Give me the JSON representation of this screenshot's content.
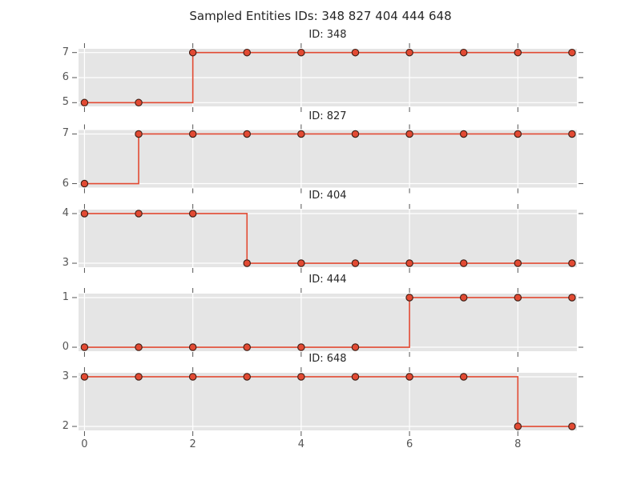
{
  "figure": {
    "title": "Sampled Entities IDs: 348 827 404 444 648",
    "colors": {
      "background": "#ffffff",
      "axes_background": "#e5e5e5",
      "grid": "#ffffff",
      "line": "#e24a33",
      "marker_fill": "#e24a33",
      "marker_edge": "#3d1e15",
      "title_text": "#262626",
      "tick_text": "#555555",
      "tick_mark": "#555555"
    }
  },
  "chart_data": [
    {
      "type": "line",
      "drawstyle": "steps-post",
      "title": "ID: 348",
      "x": [
        0,
        1,
        2,
        3,
        4,
        5,
        6,
        7,
        8,
        9
      ],
      "y": [
        5,
        5,
        7,
        7,
        7,
        7,
        7,
        7,
        7,
        7
      ],
      "yticks": [
        5,
        6,
        7
      ],
      "ylim": [
        4.85,
        7.15
      ],
      "xticks": [
        0,
        2,
        4,
        6,
        8
      ],
      "xlim": [
        -0.11,
        9.09
      ],
      "show_xticklabels": false,
      "grid": true,
      "legend": false
    },
    {
      "type": "line",
      "drawstyle": "steps-post",
      "title": "ID: 827",
      "x": [
        0,
        1,
        2,
        3,
        4,
        5,
        6,
        7,
        8,
        9
      ],
      "y": [
        6,
        7,
        7,
        7,
        7,
        7,
        7,
        7,
        7,
        7
      ],
      "yticks": [
        6,
        7
      ],
      "ylim": [
        5.92,
        7.08
      ],
      "xticks": [
        0,
        2,
        4,
        6,
        8
      ],
      "xlim": [
        -0.11,
        9.09
      ],
      "show_xticklabels": false,
      "grid": true,
      "legend": false
    },
    {
      "type": "line",
      "drawstyle": "steps-post",
      "title": "ID: 404",
      "x": [
        0,
        1,
        2,
        3,
        4,
        5,
        6,
        7,
        8,
        9
      ],
      "y": [
        4,
        4,
        4,
        3,
        3,
        3,
        3,
        3,
        3,
        3
      ],
      "yticks": [
        3,
        4
      ],
      "ylim": [
        2.92,
        4.08
      ],
      "xticks": [
        0,
        2,
        4,
        6,
        8
      ],
      "xlim": [
        -0.11,
        9.09
      ],
      "show_xticklabels": false,
      "grid": true,
      "legend": false
    },
    {
      "type": "line",
      "drawstyle": "steps-post",
      "title": "ID: 444",
      "x": [
        0,
        1,
        2,
        3,
        4,
        5,
        6,
        7,
        8,
        9
      ],
      "y": [
        0,
        0,
        0,
        0,
        0,
        0,
        1,
        1,
        1,
        1
      ],
      "yticks": [
        0,
        1
      ],
      "ylim": [
        -0.08,
        1.08
      ],
      "xticks": [
        0,
        2,
        4,
        6,
        8
      ],
      "xlim": [
        -0.11,
        9.09
      ],
      "show_xticklabels": false,
      "grid": true,
      "legend": false
    },
    {
      "type": "line",
      "drawstyle": "steps-post",
      "title": "ID: 648",
      "x": [
        0,
        1,
        2,
        3,
        4,
        5,
        6,
        7,
        8,
        9
      ],
      "y": [
        3,
        3,
        3,
        3,
        3,
        3,
        3,
        3,
        2,
        2
      ],
      "yticks": [
        2,
        3
      ],
      "ylim": [
        1.92,
        3.08
      ],
      "xticks": [
        0,
        2,
        4,
        6,
        8
      ],
      "xlim": [
        -0.11,
        9.09
      ],
      "show_xticklabels": true,
      "grid": true,
      "legend": false
    }
  ]
}
